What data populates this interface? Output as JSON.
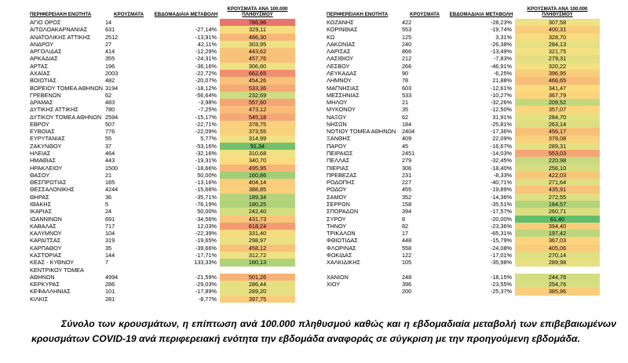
{
  "headers": {
    "unit": "ΠΕΡΙΦΕΡΕΙΑΚΗ ΕΝΟΤΗΤΑ",
    "cases": "ΚΡΟΥΣΜΑΤΑ",
    "weekly_change": "ΕΒΔΟΜΑΔΙΑΙΑ ΜΕΤΑΒΟΛΗ",
    "per100k": "ΚΡΟΥΣΜΑΤΑ ΑΝΑ 100.000 ΠΛΗΘΥΣΜΟΥ"
  },
  "left_rows": [
    [
      "ΑΓΙΟ ΟΡΟΣ",
      "14",
      "",
      "786,96",
      "#e8766c"
    ],
    [
      "ΑΙΤΩΛΟΑΚΑΡΝΑΝΙΑΣ",
      "631",
      "-27,14%",
      "329,11",
      "#f6dc7e"
    ],
    [
      "ΑΝΑΤΟΛΙΚΗΣ ΑΤΤΙΚΗΣ",
      "2512",
      "-13,91%",
      "486,30",
      "#f7b777"
    ],
    [
      "ΑΝΔΡΟΥ",
      "27",
      "42,11%",
      "303,95",
      "#eee284"
    ],
    [
      "ΑΡΓΟΛΙΔΑΣ",
      "414",
      "-12,29%",
      "443,62",
      "#f8c47a"
    ],
    [
      "ΑΡΚΑΔΙΑΣ",
      "355",
      "-24,31%",
      "457,76",
      "#f8c079"
    ],
    [
      "ΑΡΤΑΣ",
      "196",
      "-36,16%",
      "306,60",
      "#eee284"
    ],
    [
      "ΑΧΑΪΑΣ",
      "2003",
      "-22,72%",
      "662,65",
      "#f28f72"
    ],
    [
      "ΒΟΙΩΤΙΑΣ",
      "482",
      "-20,07%",
      "454,26",
      "#f8c179"
    ],
    [
      "ΒΟΡΕΙΟΥ ΤΟΜΕΑ ΑΘΗΝΩΝ",
      "3194",
      "-18,12%",
      "533,36",
      "#f6ab76"
    ],
    [
      "ΓΡΕΒΕΝΩΝ",
      "62",
      "-56,64%",
      "232,69",
      "#cfdc81"
    ],
    [
      "ΔΡΑΜΑΣ",
      "483",
      "-3,98%",
      "557,60",
      "#f5a575"
    ],
    [
      "ΔΥΤΙΚΗΣ ΑΤΤΙΚΗΣ",
      "780",
      "-7,25%",
      "473,12",
      "#f8bc78"
    ],
    [
      "ΔΥΤΙΚΟΥ ΤΟΜΕΑ ΑΘΗΝΩΝ",
      "2594",
      "-15,17%",
      "545,18",
      "#f5a875"
    ],
    [
      "ΕΒΡΟΥ",
      "507",
      "-22,71%",
      "378,75",
      "#fad17c"
    ],
    [
      "ΕΥΒΟΙΑΣ",
      "776",
      "-22,09%",
      "373,55",
      "#fad27c"
    ],
    [
      "ΕΥΡΥΤΑΝΙΑΣ",
      "55",
      "5,77%",
      "314,99",
      "#f1e183"
    ],
    [
      "ΖΑΚΥΝΘΟΥ",
      "37",
      "-53,16%",
      "91,34",
      "#73c06d"
    ],
    [
      "ΗΛΕΙΑΣ",
      "464",
      "-32,16%",
      "310,68",
      "#f0e183"
    ],
    [
      "ΗΜΑΘΙΑΣ",
      "443",
      "-19,31%",
      "340,70",
      "#fcda7e"
    ],
    [
      "ΗΡΑΚΛΕΙΟΥ",
      "1500",
      "-18,66%",
      "495,95",
      "#f7b577"
    ],
    [
      "ΘΑΣΟΥ",
      "21",
      "50,00%",
      "160,86",
      "#a2ce77"
    ],
    [
      "ΘΕΣΠΡΩΤΙΑΣ",
      "165",
      "-13,16%",
      "404,14",
      "#f9cc7b"
    ],
    [
      "ΘΕΣΣΑΛΟΝΙΚΗΣ",
      "4244",
      "-15,66%",
      "388,85",
      "#f9cf7c"
    ],
    [
      "ΘΗΡΑΣ",
      "36",
      "-35,71%",
      "189,34",
      "#b6d47b"
    ],
    [
      "ΙΘΑΚΗΣ",
      "5",
      "-76,19%",
      "180,25",
      "#b0d27a"
    ],
    [
      "ΙΚΑΡΙΑΣ",
      "24",
      "50,00%",
      "242,40",
      "#d4dd81"
    ],
    [
      "ΙΩΑΝΝΙΝΩΝ",
      "691",
      "-34,56%",
      "431,73",
      "#f8c67a"
    ],
    [
      "ΚΑΒΑΛΑΣ",
      "717",
      "12,03%",
      "618,24",
      "#f39b73"
    ],
    [
      "ΚΑΛΥΜΝΟΥ",
      "104",
      "-22,39%",
      "331,40",
      "#f7dc7e"
    ],
    [
      "ΚΑΡΔΙΤΣΑΣ",
      "319",
      "-19,65%",
      "298,97",
      "#ebe184"
    ],
    [
      "ΚΑΡΠΑΘΟΥ",
      "35",
      "-39,66%",
      "458,12",
      "#f8c079"
    ],
    [
      "ΚΑΣΤΟΡΙΑΣ",
      "144",
      "-17,71%",
      "312,72",
      "#f0e183"
    ],
    [
      "ΚΕΑΣ - ΚΥΘΝΟΥ",
      "7",
      "133,33%",
      "180,13",
      "#b0d27a"
    ],
    [
      "ΚΕΝΤΡΙΚΟΥ ΤΟΜΕΑ",
      "",
      "",
      "",
      ""
    ],
    [
      "ΑΘΗΝΩΝ",
      "4994",
      "-21,59%",
      "501,26",
      "#f7b377"
    ],
    [
      "ΚΕΡΚΥΡΑΣ",
      "286",
      "-29,03%",
      "286,44",
      "#e6e083"
    ],
    [
      "ΚΕΦΑΛΛΗΝΙΑΣ",
      "101",
      "-17,89%",
      "289,20",
      "#e7e083"
    ],
    [
      "ΚΙΛΚΙΣ",
      "281",
      "-8,77%",
      "397,75",
      "#f9cd7b"
    ]
  ],
  "right_rows": [
    [
      "ΚΟΖΑΝΗΣ",
      "422",
      "-28,23%",
      "307,58",
      "#eee284"
    ],
    [
      "ΚΟΡΙΝΘΙΑΣ",
      "553",
      "-19,74%",
      "400,31",
      "#f9cd7b"
    ],
    [
      "ΚΩ",
      "125",
      "3,31%",
      "328,70",
      "#f6dc7e"
    ],
    [
      "ΛΑΚΩΝΙΑΣ",
      "240",
      "-26,38%",
      "284,13",
      "#e5e083"
    ],
    [
      "ΛΑΡΙΣΑΣ",
      "866",
      "-13,49%",
      "321,75",
      "#f3e182"
    ],
    [
      "ΛΑΣΙΘΙΟΥ",
      "212",
      "-7,83%",
      "279,31",
      "#e3df82"
    ],
    [
      "ΛΕΣΒΟΥ",
      "266",
      "-46,91%",
      "320,22",
      "#f3e182"
    ],
    [
      "ΛΕΥΚΑΔΑΣ",
      "90",
      "-6,25%",
      "396,95",
      "#f9cd7b"
    ],
    [
      "ΛΗΜΝΟΥ",
      "78",
      "21,88%",
      "466,65",
      "#f8be79"
    ],
    [
      "ΜΑΓΝΗΣΙΑΣ",
      "603",
      "-12,61%",
      "341,47",
      "#fcda7e"
    ],
    [
      "ΜΕΣΣΗΝΙΑΣ",
      "533",
      "-10,27%",
      "367,79",
      "#fbd47d"
    ],
    [
      "ΜΗΛΟΥ",
      "21",
      "-32,26%",
      "209,52",
      "#c2d87e"
    ],
    [
      "ΜΥΚΟΝΟΥ",
      "35",
      "-12,50%",
      "357,07",
      "#fbd67d"
    ],
    [
      "ΝΑΞΟΥ",
      "62",
      "31,91%",
      "284,70",
      "#e5e083"
    ],
    [
      "ΝΗΣΩΝ",
      "184",
      "-25,81%",
      "263,14",
      "#dcde82"
    ],
    [
      "ΝΟΤΙΟΥ ΤΟΜΕΑ ΑΘΗΝΩΝ",
      "2404",
      "-17,36%",
      "456,17",
      "#f8c079"
    ],
    [
      "ΞΑΝΘΗΣ",
      "409",
      "22,09%",
      "378,08",
      "#fad17c"
    ],
    [
      "ΠΑΡΟΥ",
      "45",
      "-16,67%",
      "289,31",
      "#e7e083"
    ],
    [
      "ΠΕΙΡΑΙΩΣ",
      "2451",
      "-14,03%",
      "553,03",
      "#f5a675"
    ],
    [
      "ΠΕΛΛΑΣ",
      "279",
      "-32,45%",
      "220,98",
      "#c9da80"
    ],
    [
      "ΠΙΕΡΙΑΣ",
      "306",
      "-18,40%",
      "256,10",
      "#d9dd82"
    ],
    [
      "ΠΡΕΒΕΖΑΣ",
      "231",
      "-8,33%",
      "422,03",
      "#f8c87a"
    ],
    [
      "ΡΟΔΟΠΗΣ",
      "227",
      "-40,71%",
      "271,64",
      "#e0df82"
    ],
    [
      "ΡΟΔΟΥ",
      "455",
      "-19,89%",
      "435,91",
      "#f8c57a"
    ],
    [
      "ΣΑΜΟΥ",
      "352",
      "-14,36%",
      "272,55",
      "#e0df82"
    ],
    [
      "ΣΕΡΡΩΝ",
      "158",
      "-35,51%",
      "184,57",
      "#b3d37a"
    ],
    [
      "ΣΠΟΡΑΔΩΝ",
      "394",
      "-17,57%",
      "260,71",
      "#dbde82"
    ],
    [
      "ΣΥΡΟΥ",
      "8",
      "-20,00%",
      "61,40",
      "#63be6b"
    ],
    [
      "ΤΗΝΟΥ",
      "82",
      "-23,36%",
      "394,40",
      "#f9ce7b"
    ],
    [
      "ΤΡΙΚΑΛΩΝ",
      "17",
      "-65,31%",
      "197,42",
      "#bbd67c"
    ],
    [
      "ΦΘΙΩΤΙΔΑΣ",
      "448",
      "-15,79%",
      "367,03",
      "#fbd47d"
    ],
    [
      "ΦΛΩΡΙΝΑΣ",
      "558",
      "-24,08%",
      "405,06",
      "#f9cb7b"
    ],
    [
      "ΦΩΚΙΔΑΣ",
      "122",
      "-17,01%",
      "270,14",
      "#e0df82"
    ],
    [
      "ΧΑΛΚΙΔΙΚΗΣ",
      "105",
      "-35,98%",
      "289,98",
      "#e7e083"
    ],
    [
      "",
      "",
      "",
      "",
      ""
    ],
    [
      "ΧΑΝΙΩΝ",
      "248",
      "-18,15%",
      "244,76",
      "#d4dd81"
    ],
    [
      "ΧΙΟΥ",
      "396",
      "-23,55%",
      "254,76",
      "#d8dd82"
    ],
    [
      "",
      "200",
      "-25,37%",
      "385,96",
      "#f9cf7c"
    ],
    [
      "",
      "",
      "",
      "",
      ""
    ]
  ],
  "caption": "Σύνολο των κρουσμάτων, η επίπτωση ανά 100.000 πληθυσμού καθώς και η εβδομαδιαία μεταβολή των επιβεβαιωμένων κρουσμάτων COVID-19 ανά περιφερειακή ενότητα την εβδομάδα αναφοράς σε σύγκριση με την προηγούμενη εβδομάδα."
}
